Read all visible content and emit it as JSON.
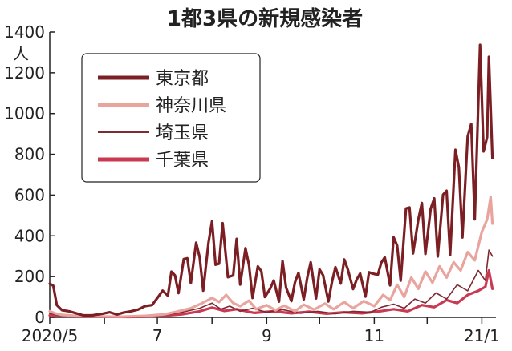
{
  "chart_data": {
    "type": "line",
    "title": "1都3県の新規感染者",
    "ylabel": "人",
    "ylim": [
      0,
      1400
    ],
    "yticks": [
      0,
      200,
      400,
      600,
      800,
      1000,
      1200,
      1400
    ],
    "xlim": [
      "2020-05-01",
      "2021-01-09"
    ],
    "xticks": [
      {
        "date": "2020-05-01",
        "label": "2020/5"
      },
      {
        "date": "2020-06-01",
        "label": ""
      },
      {
        "date": "2020-07-01",
        "label": "7"
      },
      {
        "date": "2020-08-01",
        "label": ""
      },
      {
        "date": "2020-09-01",
        "label": "9"
      },
      {
        "date": "2020-10-01",
        "label": ""
      },
      {
        "date": "2020-11-01",
        "label": "11"
      },
      {
        "date": "2020-12-01",
        "label": ""
      },
      {
        "date": "2021-01-01",
        "label": "21/1"
      }
    ],
    "grid": false,
    "legend": "top-left",
    "series": [
      {
        "name": "東京都",
        "color": "#7b1f24",
        "points": [
          [
            "2020-05-01",
            165
          ],
          [
            "2020-05-03",
            155
          ],
          [
            "2020-05-05",
            60
          ],
          [
            "2020-05-08",
            35
          ],
          [
            "2020-05-12",
            30
          ],
          [
            "2020-05-16",
            20
          ],
          [
            "2020-05-20",
            10
          ],
          [
            "2020-05-25",
            10
          ],
          [
            "2020-05-31",
            18
          ],
          [
            "2020-06-04",
            25
          ],
          [
            "2020-06-08",
            14
          ],
          [
            "2020-06-12",
            24
          ],
          [
            "2020-06-16",
            30
          ],
          [
            "2020-06-20",
            38
          ],
          [
            "2020-06-24",
            55
          ],
          [
            "2020-06-28",
            60
          ],
          [
            "2020-07-02",
            107
          ],
          [
            "2020-07-04",
            131
          ],
          [
            "2020-07-07",
            106
          ],
          [
            "2020-07-09",
            224
          ],
          [
            "2020-07-11",
            206
          ],
          [
            "2020-07-13",
            119
          ],
          [
            "2020-07-16",
            286
          ],
          [
            "2020-07-18",
            290
          ],
          [
            "2020-07-20",
            168
          ],
          [
            "2020-07-23",
            366
          ],
          [
            "2020-07-25",
            295
          ],
          [
            "2020-07-27",
            131
          ],
          [
            "2020-07-30",
            367
          ],
          [
            "2020-08-01",
            472
          ],
          [
            "2020-08-03",
            258
          ],
          [
            "2020-08-05",
            263
          ],
          [
            "2020-08-07",
            462
          ],
          [
            "2020-08-10",
            197
          ],
          [
            "2020-08-13",
            206
          ],
          [
            "2020-08-15",
            385
          ],
          [
            "2020-08-17",
            161
          ],
          [
            "2020-08-20",
            339
          ],
          [
            "2020-08-22",
            256
          ],
          [
            "2020-08-24",
            95
          ],
          [
            "2020-08-27",
            250
          ],
          [
            "2020-08-29",
            226
          ],
          [
            "2020-08-31",
            100
          ],
          [
            "2020-09-03",
            141
          ],
          [
            "2020-09-05",
            181
          ],
          [
            "2020-09-08",
            77
          ],
          [
            "2020-09-10",
            276
          ],
          [
            "2020-09-12",
            146
          ],
          [
            "2020-09-15",
            80
          ],
          [
            "2020-09-17",
            171
          ],
          [
            "2020-09-19",
            218
          ],
          [
            "2020-09-22",
            88
          ],
          [
            "2020-09-24",
            195
          ],
          [
            "2020-09-26",
            270
          ],
          [
            "2020-09-29",
            93
          ],
          [
            "2020-10-01",
            235
          ],
          [
            "2020-10-03",
            207
          ],
          [
            "2020-10-06",
            78
          ],
          [
            "2020-10-08",
            172
          ],
          [
            "2020-10-10",
            246
          ],
          [
            "2020-10-13",
            166
          ],
          [
            "2020-10-15",
            284
          ],
          [
            "2020-10-17",
            235
          ],
          [
            "2020-10-20",
            139
          ],
          [
            "2020-10-22",
            185
          ],
          [
            "2020-10-24",
            215
          ],
          [
            "2020-10-27",
            102
          ],
          [
            "2020-10-29",
            221
          ],
          [
            "2020-10-31",
            215
          ],
          [
            "2020-11-03",
            209
          ],
          [
            "2020-11-05",
            269
          ],
          [
            "2020-11-07",
            294
          ],
          [
            "2020-11-10",
            157
          ],
          [
            "2020-11-12",
            393
          ],
          [
            "2020-11-14",
            352
          ],
          [
            "2020-11-16",
            180
          ],
          [
            "2020-11-19",
            534
          ],
          [
            "2020-11-21",
            539
          ],
          [
            "2020-11-23",
            314
          ],
          [
            "2020-11-26",
            481
          ],
          [
            "2020-11-28",
            561
          ],
          [
            "2020-11-30",
            311
          ],
          [
            "2020-12-03",
            533
          ],
          [
            "2020-12-05",
            584
          ],
          [
            "2020-12-07",
            299
          ],
          [
            "2020-12-10",
            602
          ],
          [
            "2020-12-12",
            621
          ],
          [
            "2020-12-14",
            305
          ],
          [
            "2020-12-17",
            822
          ],
          [
            "2020-12-19",
            736
          ],
          [
            "2020-12-21",
            392
          ],
          [
            "2020-12-24",
            888
          ],
          [
            "2020-12-26",
            949
          ],
          [
            "2020-12-28",
            481
          ],
          [
            "2020-12-31",
            1337
          ],
          [
            "2021-01-02",
            814
          ],
          [
            "2021-01-04",
            884
          ],
          [
            "2021-01-05",
            1278
          ],
          [
            "2021-01-07",
            781
          ]
        ]
      },
      {
        "name": "神奈川県",
        "color": "#e9a49e",
        "points": [
          [
            "2020-05-01",
            30
          ],
          [
            "2020-05-04",
            20
          ],
          [
            "2020-05-08",
            12
          ],
          [
            "2020-05-15",
            8
          ],
          [
            "2020-05-25",
            5
          ],
          [
            "2020-06-10",
            3
          ],
          [
            "2020-06-25",
            8
          ],
          [
            "2020-07-05",
            15
          ],
          [
            "2020-07-12",
            28
          ],
          [
            "2020-07-20",
            45
          ],
          [
            "2020-07-26",
            68
          ],
          [
            "2020-08-01",
            95
          ],
          [
            "2020-08-05",
            75
          ],
          [
            "2020-08-09",
            110
          ],
          [
            "2020-08-13",
            70
          ],
          [
            "2020-08-17",
            55
          ],
          [
            "2020-08-22",
            82
          ],
          [
            "2020-08-26",
            40
          ],
          [
            "2020-09-01",
            60
          ],
          [
            "2020-09-06",
            35
          ],
          [
            "2020-09-11",
            58
          ],
          [
            "2020-09-17",
            30
          ],
          [
            "2020-09-22",
            62
          ],
          [
            "2020-09-28",
            38
          ],
          [
            "2020-10-04",
            68
          ],
          [
            "2020-10-09",
            40
          ],
          [
            "2020-10-15",
            75
          ],
          [
            "2020-10-20",
            45
          ],
          [
            "2020-10-26",
            80
          ],
          [
            "2020-11-01",
            55
          ],
          [
            "2020-11-06",
            110
          ],
          [
            "2020-11-10",
            85
          ],
          [
            "2020-11-14",
            160
          ],
          [
            "2020-11-18",
            100
          ],
          [
            "2020-11-22",
            195
          ],
          [
            "2020-11-26",
            140
          ],
          [
            "2020-11-30",
            225
          ],
          [
            "2020-12-04",
            170
          ],
          [
            "2020-12-08",
            250
          ],
          [
            "2020-12-12",
            195
          ],
          [
            "2020-12-16",
            270
          ],
          [
            "2020-12-20",
            230
          ],
          [
            "2020-12-24",
            320
          ],
          [
            "2020-12-28",
            280
          ],
          [
            "2021-01-01",
            420
          ],
          [
            "2021-01-04",
            480
          ],
          [
            "2021-01-06",
            591
          ],
          [
            "2021-01-07",
            460
          ]
        ]
      },
      {
        "name": "埼玉県",
        "color": "#7e2a33",
        "points": [
          [
            "2020-05-01",
            20
          ],
          [
            "2020-05-06",
            10
          ],
          [
            "2020-05-15",
            5
          ],
          [
            "2020-06-01",
            3
          ],
          [
            "2020-06-20",
            5
          ],
          [
            "2020-07-05",
            12
          ],
          [
            "2020-07-15",
            25
          ],
          [
            "2020-07-25",
            45
          ],
          [
            "2020-08-01",
            70
          ],
          [
            "2020-08-06",
            40
          ],
          [
            "2020-08-11",
            55
          ],
          [
            "2020-08-17",
            30
          ],
          [
            "2020-08-24",
            45
          ],
          [
            "2020-09-01",
            25
          ],
          [
            "2020-09-10",
            38
          ],
          [
            "2020-09-20",
            20
          ],
          [
            "2020-09-30",
            30
          ],
          [
            "2020-10-10",
            18
          ],
          [
            "2020-10-20",
            30
          ],
          [
            "2020-10-30",
            25
          ],
          [
            "2020-11-05",
            50
          ],
          [
            "2020-11-12",
            65
          ],
          [
            "2020-11-18",
            45
          ],
          [
            "2020-11-24",
            90
          ],
          [
            "2020-11-30",
            70
          ],
          [
            "2020-12-06",
            120
          ],
          [
            "2020-12-12",
            90
          ],
          [
            "2020-12-18",
            160
          ],
          [
            "2020-12-24",
            130
          ],
          [
            "2020-12-30",
            230
          ],
          [
            "2021-01-03",
            180
          ],
          [
            "2021-01-05",
            330
          ],
          [
            "2021-01-07",
            300
          ]
        ]
      },
      {
        "name": "千葉県",
        "color": "#c93a52",
        "points": [
          [
            "2020-05-01",
            10
          ],
          [
            "2020-05-10",
            6
          ],
          [
            "2020-05-25",
            3
          ],
          [
            "2020-06-15",
            2
          ],
          [
            "2020-07-01",
            5
          ],
          [
            "2020-07-15",
            15
          ],
          [
            "2020-07-25",
            30
          ],
          [
            "2020-08-01",
            48
          ],
          [
            "2020-08-08",
            32
          ],
          [
            "2020-08-15",
            40
          ],
          [
            "2020-08-25",
            22
          ],
          [
            "2020-09-05",
            30
          ],
          [
            "2020-09-15",
            20
          ],
          [
            "2020-09-25",
            28
          ],
          [
            "2020-10-05",
            18
          ],
          [
            "2020-10-15",
            25
          ],
          [
            "2020-10-25",
            20
          ],
          [
            "2020-11-04",
            30
          ],
          [
            "2020-11-12",
            40
          ],
          [
            "2020-11-20",
            30
          ],
          [
            "2020-11-28",
            60
          ],
          [
            "2020-12-05",
            50
          ],
          [
            "2020-12-12",
            85
          ],
          [
            "2020-12-18",
            70
          ],
          [
            "2020-12-24",
            110
          ],
          [
            "2020-12-30",
            130
          ],
          [
            "2021-01-03",
            150
          ],
          [
            "2021-01-05",
            230
          ],
          [
            "2021-01-07",
            140
          ]
        ]
      }
    ]
  }
}
